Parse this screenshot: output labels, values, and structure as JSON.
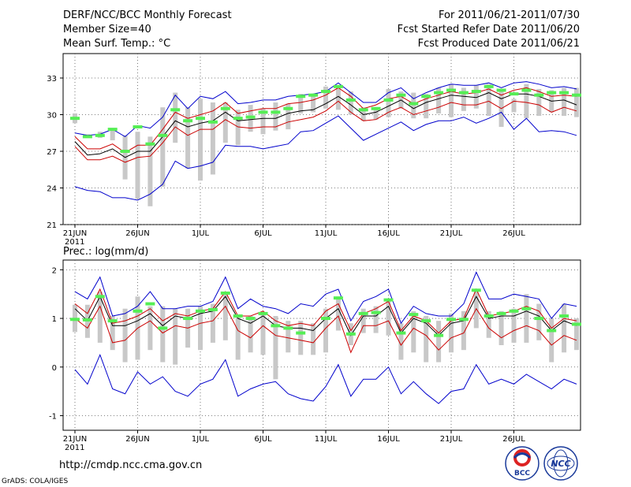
{
  "header": {
    "title": "DERF/NCC/BCC Monthly Forecast",
    "member_size": "Member Size=40",
    "variable": "Mean Surf. Temp.: °C",
    "period": "For 2011/06/21-2011/07/30",
    "started": "Fcst Started Refer Date 2011/06/20",
    "produced": "Fcst Produced Date 2011/06/21"
  },
  "precip_label": "Prec.: log(mm/d)",
  "footer": {
    "url": "http://cmdp.ncc.cma.gov.cn",
    "grads": "GrADS: COLA/IGES",
    "logo_bcc_text": "BCC",
    "logo_ncc_text": "NCC"
  },
  "x_axis": {
    "tick_labels": [
      "21JUN",
      "26JUN",
      "1JUL",
      "6JUL",
      "11JUL",
      "16JUL",
      "21JUL",
      "26JUL"
    ],
    "tick_days": [
      0,
      5,
      10,
      15,
      20,
      25,
      30,
      35
    ],
    "year": "2011"
  },
  "colors": {
    "box": "#c8c8c8",
    "mean": "#55ee55",
    "upper_lower": "#0000cc",
    "spread": "#cc0000",
    "median": "#000000"
  },
  "chart_data": [
    {
      "type": "line",
      "name": "temperature",
      "title": "Mean Surf. Temp.: °C",
      "ylim": [
        21,
        35
      ],
      "yticks": [
        21,
        24,
        27,
        30,
        33
      ],
      "x": [
        0,
        1,
        2,
        3,
        4,
        5,
        6,
        7,
        8,
        9,
        10,
        11,
        12,
        13,
        14,
        15,
        16,
        17,
        18,
        19,
        20,
        21,
        22,
        23,
        24,
        25,
        26,
        27,
        28,
        29,
        30,
        31,
        32,
        33,
        34,
        35,
        36,
        37,
        38,
        39,
        40
      ],
      "series": [
        {
          "name": "max",
          "color": "#0000cc",
          "values": [
            28.5,
            28.3,
            28.4,
            28.8,
            28.2,
            29.1,
            28.9,
            29.8,
            31.6,
            30.5,
            31.5,
            31.3,
            31.9,
            30.9,
            31.0,
            31.2,
            31.2,
            31.5,
            31.6,
            31.7,
            31.9,
            32.6,
            31.8,
            31.0,
            31.0,
            31.8,
            32.2,
            31.3,
            31.8,
            32.2,
            32.5,
            32.4,
            32.4,
            32.6,
            32.2,
            32.6,
            32.7,
            32.5,
            32.2,
            32.3,
            32.1
          ]
        },
        {
          "name": "upper",
          "color": "#cc0000",
          "values": [
            28.2,
            27.2,
            27.2,
            27.6,
            26.9,
            27.5,
            27.5,
            28.8,
            30.2,
            29.7,
            30.0,
            30.3,
            31.0,
            30.1,
            30.3,
            30.5,
            30.5,
            30.9,
            31.0,
            31.2,
            31.6,
            32.2,
            31.5,
            30.5,
            30.8,
            31.3,
            31.5,
            30.9,
            31.3,
            31.6,
            31.9,
            31.7,
            31.8,
            32.1,
            31.6,
            32.0,
            32.2,
            31.9,
            31.5,
            31.6,
            31.5
          ]
        },
        {
          "name": "median",
          "color": "#000000",
          "values": [
            27.8,
            26.7,
            26.8,
            27.2,
            26.5,
            27.0,
            27.0,
            28.2,
            29.5,
            29.0,
            29.3,
            29.5,
            30.2,
            29.5,
            29.6,
            29.7,
            29.7,
            30.1,
            30.3,
            30.4,
            30.9,
            31.5,
            30.8,
            30.0,
            30.2,
            30.7,
            31.2,
            30.5,
            31.0,
            31.3,
            31.6,
            31.5,
            31.4,
            31.8,
            31.3,
            31.7,
            31.7,
            31.5,
            31.1,
            31.2,
            30.8
          ]
        },
        {
          "name": "lower",
          "color": "#cc0000",
          "values": [
            27.4,
            26.3,
            26.3,
            26.6,
            26.1,
            26.5,
            26.6,
            27.7,
            29.0,
            28.3,
            28.8,
            28.8,
            29.6,
            29.0,
            28.9,
            29.0,
            29.0,
            29.4,
            29.6,
            29.8,
            30.3,
            31.1,
            30.2,
            29.5,
            29.6,
            30.2,
            30.6,
            30.0,
            30.3,
            30.6,
            31.0,
            30.8,
            30.8,
            31.1,
            30.5,
            31.1,
            31.0,
            30.8,
            30.2,
            30.6,
            30.3
          ]
        },
        {
          "name": "min",
          "color": "#0000cc",
          "values": [
            24.1,
            23.8,
            23.7,
            23.2,
            23.2,
            23.0,
            23.5,
            24.3,
            26.2,
            25.6,
            25.8,
            26.1,
            27.5,
            27.4,
            27.4,
            27.2,
            27.4,
            27.6,
            28.6,
            28.7,
            29.3,
            29.9,
            28.9,
            27.9,
            28.4,
            28.9,
            29.4,
            28.7,
            29.2,
            29.5,
            29.5,
            29.8,
            29.3,
            29.7,
            30.2,
            28.8,
            29.7,
            28.6,
            28.7,
            28.6,
            28.3
          ]
        },
        {
          "name": "mean_markers",
          "color": "#55ee55",
          "values": [
            29.7,
            28.2,
            28.3,
            28.8,
            27.0,
            29.0,
            27.6,
            28.3,
            30.4,
            29.5,
            29.7,
            29.4,
            30.5,
            29.7,
            29.8,
            30.2,
            30.2,
            30.5,
            31.5,
            31.6,
            31.9,
            32.3,
            31.2,
            30.4,
            30.5,
            31.2,
            31.6,
            30.9,
            31.5,
            31.8,
            32.0,
            31.8,
            31.9,
            32.3,
            32.0,
            31.7,
            32.0,
            31.6,
            31.8,
            31.8,
            31.6
          ]
        }
      ],
      "boxes": [
        [
          29.3,
          30.1
        ],
        [
          28.3,
          28.4
        ],
        [
          28.1,
          28.6
        ],
        [
          27.9,
          28.7
        ],
        [
          24.7,
          28.3
        ],
        [
          23.1,
          28.6
        ],
        [
          22.5,
          28.2
        ],
        [
          24.1,
          30.6
        ],
        [
          27.7,
          31.8
        ],
        [
          25.6,
          30.6
        ],
        [
          24.6,
          31.3
        ],
        [
          25.1,
          31.0
        ],
        [
          27.7,
          31.0
        ],
        [
          27.5,
          30.4
        ],
        [
          28.6,
          30.8
        ],
        [
          28.4,
          30.5
        ],
        [
          28.7,
          31.0
        ],
        [
          28.8,
          30.9
        ],
        [
          30.1,
          31.7
        ],
        [
          30.2,
          31.5
        ],
        [
          30.5,
          32.3
        ],
        [
          30.4,
          32.2
        ],
        [
          30.0,
          31.9
        ],
        [
          29.5,
          30.6
        ],
        [
          29.6,
          30.5
        ],
        [
          29.8,
          32.1
        ],
        [
          30.5,
          31.9
        ],
        [
          29.7,
          31.8
        ],
        [
          29.7,
          31.7
        ],
        [
          30.1,
          32.2
        ],
        [
          29.8,
          32.5
        ],
        [
          30.3,
          32.2
        ],
        [
          30.5,
          32.4
        ],
        [
          29.9,
          32.5
        ],
        [
          29.0,
          32.1
        ],
        [
          30.2,
          31.3
        ],
        [
          29.7,
          32.5
        ],
        [
          29.9,
          32.1
        ],
        [
          30.2,
          32.0
        ],
        [
          29.9,
          32.2
        ],
        [
          29.8,
          32.2
        ]
      ]
    },
    {
      "type": "line",
      "name": "precipitation",
      "title": "Prec.: log(mm/d)",
      "ylim": [
        -1.3,
        2.2
      ],
      "yticks": [
        -1,
        0,
        1,
        2
      ],
      "x": [
        0,
        1,
        2,
        3,
        4,
        5,
        6,
        7,
        8,
        9,
        10,
        11,
        12,
        13,
        14,
        15,
        16,
        17,
        18,
        19,
        20,
        21,
        22,
        23,
        24,
        25,
        26,
        27,
        28,
        29,
        30,
        31,
        32,
        33,
        34,
        35,
        36,
        37,
        38,
        39,
        40
      ],
      "series": [
        {
          "name": "max",
          "color": "#0000cc",
          "values": [
            1.55,
            1.4,
            1.85,
            1.05,
            1.1,
            1.25,
            1.55,
            1.2,
            1.2,
            1.25,
            1.25,
            1.35,
            1.85,
            1.2,
            1.4,
            1.25,
            1.2,
            1.1,
            1.3,
            1.25,
            1.5,
            1.6,
            0.95,
            1.35,
            1.45,
            1.6,
            0.9,
            1.25,
            1.1,
            1.05,
            1.05,
            1.3,
            1.95,
            1.4,
            1.4,
            1.5,
            1.45,
            1.4,
            1.0,
            1.3,
            1.25
          ]
        },
        {
          "name": "upper",
          "color": "#cc0000",
          "values": [
            1.3,
            1.1,
            1.6,
            0.9,
            0.95,
            1.05,
            1.2,
            0.95,
            1.1,
            1.05,
            1.15,
            1.2,
            1.55,
            1.05,
            1.05,
            1.15,
            0.95,
            0.85,
            0.9,
            0.85,
            1.15,
            1.3,
            0.75,
            1.1,
            1.2,
            1.35,
            0.75,
            1.05,
            0.95,
            0.7,
            0.95,
            1.0,
            1.6,
            1.05,
            1.1,
            1.15,
            1.25,
            1.15,
            0.8,
            1.0,
            0.95
          ]
        },
        {
          "name": "median",
          "color": "#000000",
          "values": [
            1.2,
            0.95,
            1.45,
            0.85,
            0.85,
            0.95,
            1.1,
            0.85,
            1.05,
            1.0,
            1.1,
            1.15,
            1.45,
            1.0,
            0.9,
            1.05,
            0.85,
            0.8,
            0.8,
            0.75,
            1.0,
            1.2,
            0.65,
            1.05,
            1.05,
            1.25,
            0.7,
            1.0,
            0.9,
            0.65,
            0.9,
            0.95,
            1.45,
            1.0,
            1.05,
            1.05,
            1.15,
            1.05,
            0.75,
            0.95,
            0.85
          ]
        },
        {
          "name": "lower",
          "color": "#cc0000",
          "values": [
            1.0,
            0.8,
            1.25,
            0.5,
            0.55,
            0.8,
            0.95,
            0.7,
            0.85,
            0.8,
            0.9,
            0.95,
            1.25,
            0.75,
            0.6,
            0.85,
            0.65,
            0.6,
            0.55,
            0.5,
            0.8,
            1.05,
            0.3,
            0.85,
            0.85,
            0.95,
            0.45,
            0.8,
            0.65,
            0.35,
            0.6,
            0.7,
            1.2,
            0.8,
            0.6,
            0.75,
            0.85,
            0.75,
            0.45,
            0.65,
            0.55
          ]
        },
        {
          "name": "min",
          "color": "#0000cc",
          "values": [
            -0.05,
            -0.35,
            0.25,
            -0.45,
            -0.55,
            -0.1,
            -0.35,
            -0.2,
            -0.5,
            -0.6,
            -0.35,
            -0.25,
            0.15,
            -0.6,
            -0.45,
            -0.35,
            -0.3,
            -0.55,
            -0.65,
            -0.7,
            -0.4,
            0.05,
            -0.6,
            -0.25,
            -0.25,
            0.0,
            -0.55,
            -0.3,
            -0.55,
            -0.75,
            -0.5,
            -0.45,
            0.05,
            -0.35,
            -0.25,
            -0.35,
            -0.15,
            -0.3,
            -0.45,
            -0.25,
            -0.35
          ]
        },
        {
          "name": "mean_markers",
          "color": "#55ee55",
          "values": [
            0.98,
            0.97,
            1.45,
            0.95,
            null,
            1.15,
            1.3,
            0.8,
            null,
            1.0,
            1.15,
            1.18,
            1.52,
            1.05,
            1.0,
            1.1,
            0.85,
            0.8,
            0.7,
            null,
            1.0,
            1.42,
            0.68,
            1.1,
            1.12,
            1.38,
            0.7,
            1.08,
            0.95,
            0.65,
            0.98,
            0.98,
            1.58,
            1.05,
            1.1,
            1.15,
            1.2,
            1.0,
            0.75,
            1.05,
            0.88
          ]
        }
      ],
      "boxes": [
        [
          0.72,
          1.28
        ],
        [
          0.6,
          1.28
        ],
        [
          0.5,
          1.55
        ],
        [
          0.35,
          1.05
        ],
        [
          0.1,
          1.2
        ],
        [
          0.15,
          1.45
        ],
        [
          0.35,
          1.25
        ],
        [
          0.1,
          1.25
        ],
        [
          0.05,
          1.2
        ],
        [
          0.4,
          1.2
        ],
        [
          0.35,
          1.25
        ],
        [
          0.5,
          1.3
        ],
        [
          0.55,
          1.55
        ],
        [
          0.15,
          1.05
        ],
        [
          0.3,
          1.05
        ],
        [
          0.25,
          1.1
        ],
        [
          -0.25,
          1.05
        ],
        [
          0.3,
          0.95
        ],
        [
          0.25,
          0.95
        ],
        [
          0.25,
          0.9
        ],
        [
          0.3,
          1.2
        ],
        [
          0.75,
          1.45
        ],
        [
          0.45,
          0.9
        ],
        [
          0.7,
          1.2
        ],
        [
          0.7,
          1.25
        ],
        [
          0.65,
          1.4
        ],
        [
          0.15,
          0.9
        ],
        [
          0.3,
          1.15
        ],
        [
          0.1,
          1.05
        ],
        [
          0.1,
          0.95
        ],
        [
          0.3,
          1.1
        ],
        [
          0.35,
          1.15
        ],
        [
          0.8,
          1.6
        ],
        [
          0.6,
          1.15
        ],
        [
          0.45,
          1.15
        ],
        [
          0.5,
          1.2
        ],
        [
          0.5,
          1.5
        ],
        [
          0.55,
          1.3
        ],
        [
          0.1,
          1.0
        ],
        [
          0.3,
          1.3
        ],
        [
          0.35,
          1.0
        ]
      ]
    }
  ]
}
